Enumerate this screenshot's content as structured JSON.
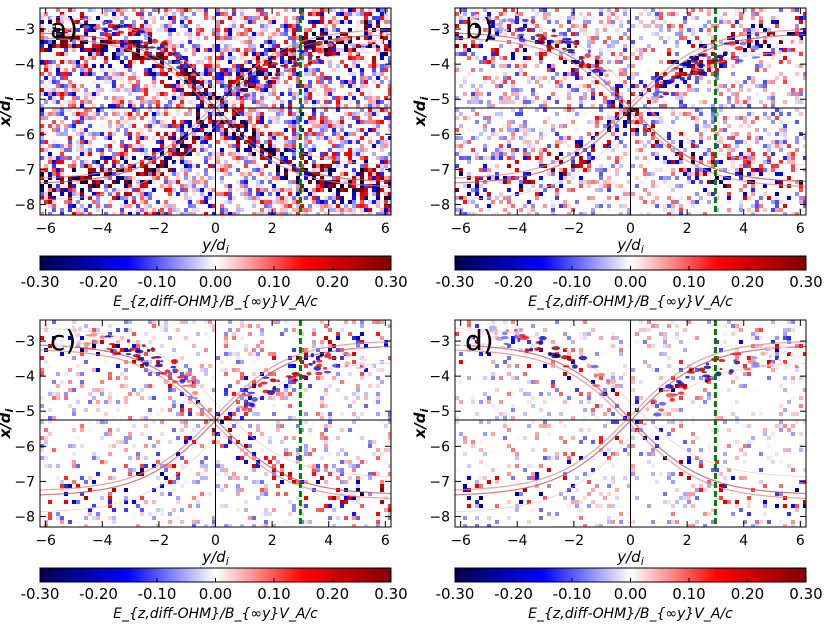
{
  "chart_data": {
    "type": "heatmap",
    "panels": [
      {
        "label": "a)",
        "noise_level": 1.0
      },
      {
        "label": "b)",
        "noise_level": 0.55
      },
      {
        "label": "c)",
        "noise_level": 0.3
      },
      {
        "label": "d)",
        "noise_level": 0.22
      }
    ],
    "xlabel": "y/d_i",
    "ylabel": "x/d_i",
    "xlim": [
      -6.2,
      6.2
    ],
    "ylim": [
      -8.3,
      -2.4
    ],
    "xticks": [
      -6,
      -4,
      -2,
      0,
      2,
      4,
      6
    ],
    "yticks": [
      -3,
      -4,
      -5,
      -6,
      -7,
      -8
    ],
    "xtick_labels": [
      "−6",
      "−4",
      "−2",
      "0",
      "2",
      "4",
      "6"
    ],
    "ytick_labels": [
      "−3",
      "−4",
      "−5",
      "−6",
      "−7",
      "−8"
    ],
    "x_point": {
      "y": 0,
      "x": -5.25
    },
    "vertical_line_y": 3.0,
    "colorbar": {
      "label": "E_{z,diff-OHM}/B_{∞y}V_A/c",
      "range": [
        -0.3,
        0.3
      ],
      "ticks": [
        -0.3,
        -0.2,
        -0.1,
        0.0,
        0.1,
        0.2,
        0.3
      ],
      "tick_labels": [
        "-0.30",
        "-0.20",
        "-0.10",
        "0.00",
        "0.10",
        "0.20",
        "0.30"
      ],
      "colormap": "seismic",
      "stops": [
        "#00004d",
        "#0000ff",
        "#ffffff",
        "#ff0000",
        "#800000"
      ]
    },
    "colors": {
      "dashed_line": "#008000",
      "crosshair": "#000000"
    }
  }
}
